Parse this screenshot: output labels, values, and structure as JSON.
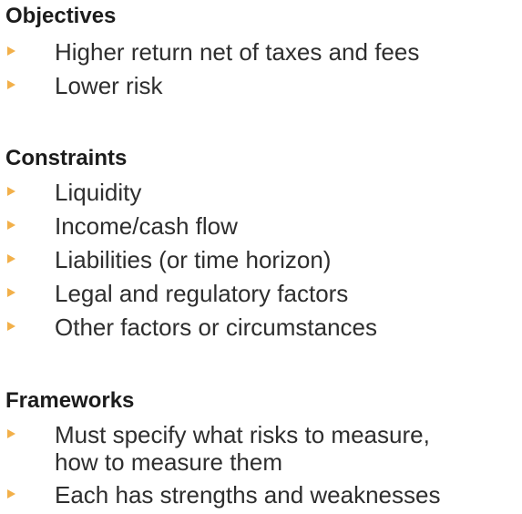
{
  "sections": [
    {
      "heading": "Objectives",
      "items": [
        {
          "lines": [
            "Higher return net of taxes and fees"
          ]
        },
        {
          "lines": [
            "Lower risk"
          ]
        }
      ]
    },
    {
      "heading": "Constraints",
      "items": [
        {
          "lines": [
            "Liquidity"
          ]
        },
        {
          "lines": [
            "Income/cash flow"
          ]
        },
        {
          "lines": [
            "Liabilities (or time horizon)"
          ]
        },
        {
          "lines": [
            "Legal and regulatory factors"
          ]
        },
        {
          "lines": [
            "Other factors or circumstances"
          ]
        }
      ]
    },
    {
      "heading": "Frameworks",
      "items": [
        {
          "lines": [
            "Must specify what risks to measure,",
            "how to measure them"
          ]
        },
        {
          "lines": [
            "Each has strengths and weaknesses"
          ]
        }
      ]
    }
  ],
  "colors": {
    "bullet_arrow": "#f2b04a",
    "heading_text": "#1c1c1c",
    "body_text": "#2e2e2e",
    "background": "#ffffff"
  },
  "icons": {
    "bullet": "triangle-arrow-right-icon"
  }
}
